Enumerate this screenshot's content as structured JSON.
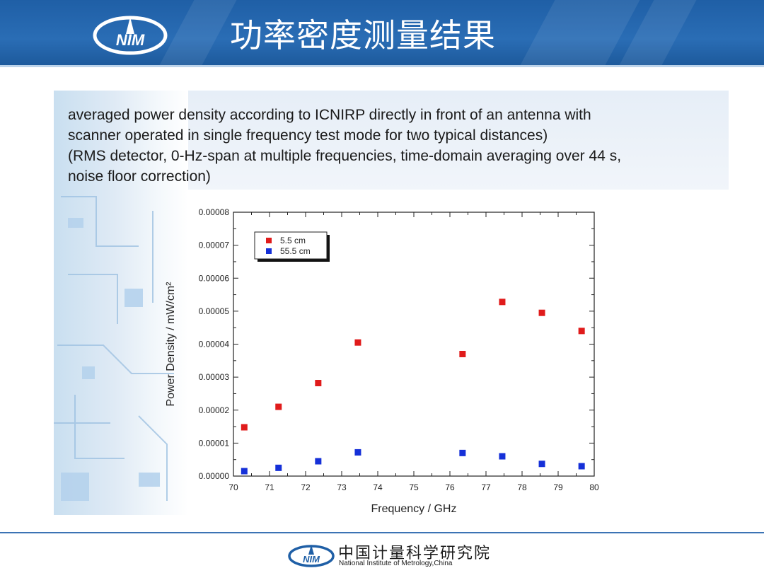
{
  "header": {
    "title": "功率密度测量结果"
  },
  "description": {
    "lines": [
      "averaged power density according to ICNIRP directly in front of an antenna with",
      "scanner operated in single frequency test mode for two typical distances)",
      "(RMS detector, 0-Hz-span at multiple frequencies, time-domain averaging over 44 s,",
      "noise floor correction)"
    ]
  },
  "chart_data": {
    "type": "scatter",
    "xlabel": "Frequency / GHz",
    "ylabel": "Power Density / mW/cm²",
    "xlim": [
      70,
      80
    ],
    "ylim": [
      0,
      8e-05
    ],
    "x_ticks": [
      "70",
      "71",
      "72",
      "73",
      "74",
      "75",
      "76",
      "77",
      "78",
      "79",
      "80"
    ],
    "y_ticks": [
      "0.00000",
      "0.00001",
      "0.00002",
      "0.00003",
      "0.00004",
      "0.00005",
      "0.00006",
      "0.00007",
      "0.00008"
    ],
    "legend_position": "top-left",
    "series": [
      {
        "name": "5.5 cm",
        "color": "#e01b1b",
        "x": [
          70.3,
          71.25,
          72.35,
          73.45,
          76.35,
          77.45,
          78.55,
          79.65
        ],
        "y": [
          1.48e-05,
          2.1e-05,
          2.82e-05,
          4.05e-05,
          3.7e-05,
          5.28e-05,
          4.95e-05,
          4.4e-05
        ]
      },
      {
        "name": "55.5 cm",
        "color": "#1530d8",
        "x": [
          70.3,
          71.25,
          72.35,
          73.45,
          76.35,
          77.45,
          78.55,
          79.65
        ],
        "y": [
          1.5e-06,
          2.5e-06,
          4.5e-06,
          7.2e-06,
          7e-06,
          6e-06,
          3.7e-06,
          3e-06
        ]
      }
    ]
  },
  "footer": {
    "org_cn": "中国计量科学研究院",
    "org_en": "National Institute of Metrology,China"
  }
}
